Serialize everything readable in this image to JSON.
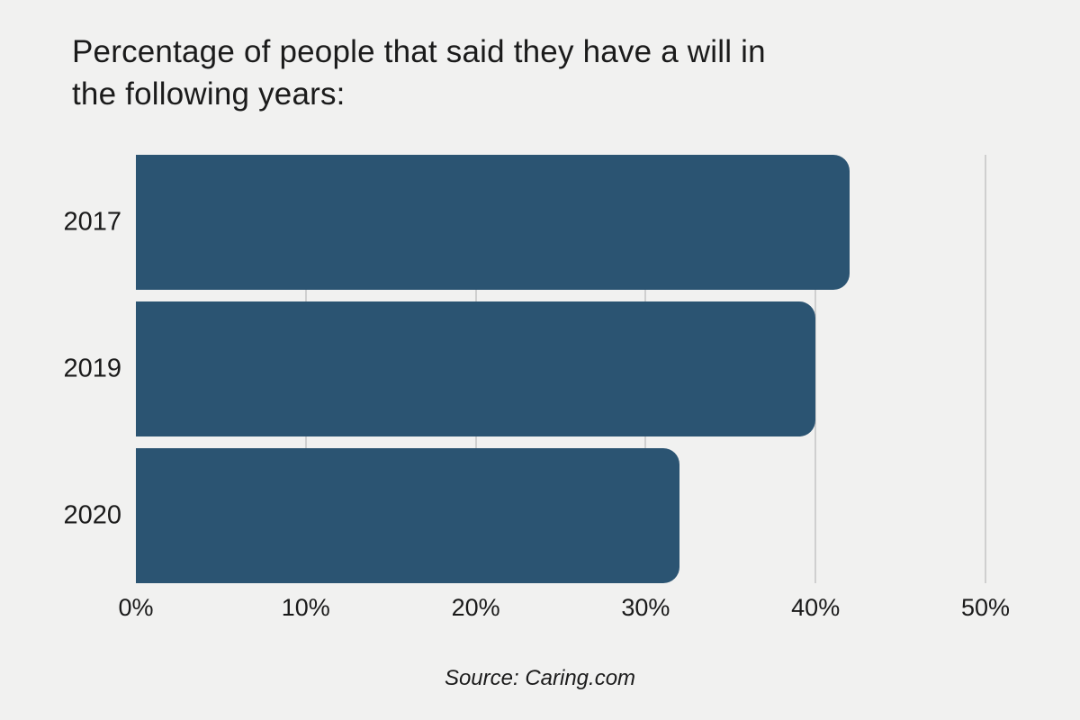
{
  "title_lines": [
    "Percentage of people that said they have a will in",
    "the following years:"
  ],
  "source": "Source: Caring.com",
  "colors": {
    "background": "#f1f1f0",
    "bar": "#2b5472",
    "gridline": "#cfcfcf",
    "text": "#1a1a1a"
  },
  "chart_data": {
    "type": "bar",
    "orientation": "horizontal",
    "title": "Percentage of people that said they have a will in the following years:",
    "categories": [
      "2017",
      "2019",
      "2020"
    ],
    "values": [
      42,
      40,
      32
    ],
    "unit": "%",
    "xlim": [
      0,
      50
    ],
    "xticks": [
      "0%",
      "10%",
      "20%",
      "30%",
      "40%",
      "50%"
    ],
    "grid": "vertical-only",
    "legend": "none",
    "source": "Source: Caring.com"
  }
}
